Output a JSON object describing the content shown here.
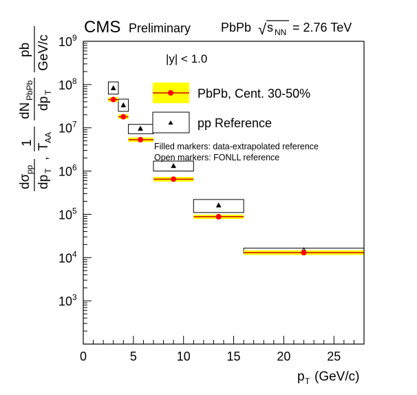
{
  "header": {
    "experiment": "CMS",
    "status": "Preliminary",
    "system": "PbPb",
    "sqrt_symbol": "√",
    "energy_var": "s",
    "energy_sub": "NN",
    "energy_value": "= 2.76 TeV"
  },
  "rapidity_cut": "|y| < 1.0",
  "notes": {
    "filled": "Filled markers: data-extrapolated reference",
    "open": "Open markers: FONLL reference"
  },
  "colors": {
    "pbpb_band": "#ffff00",
    "pbpb_line": "#cc0000",
    "pbpb_marker": "#ff0000",
    "pp_marker": "#000000"
  },
  "chart_data": {
    "type": "scatter",
    "xlabel": "p_T (GeV/c)",
    "ylabel": "dσ_pp/dp_T , 1/T_AA dN_PbPb/dp_T   pb/(GeV/c)",
    "xlim": [
      0,
      28
    ],
    "ylim": [
      100,
      1000000000
    ],
    "yscale": "log",
    "x_ticks": [
      0,
      5,
      10,
      15,
      20,
      25
    ],
    "y_ticks": [
      {
        "value": 1000,
        "base": "10",
        "exp": "3"
      },
      {
        "value": 10000,
        "base": "10",
        "exp": "4"
      },
      {
        "value": 100000,
        "base": "10",
        "exp": "5"
      },
      {
        "value": 1000000,
        "base": "10",
        "exp": "6"
      },
      {
        "value": 10000000,
        "base": "10",
        "exp": "7"
      },
      {
        "value": 100000000,
        "base": "10",
        "exp": "8"
      },
      {
        "value": 1000000000,
        "base": "10",
        "exp": "9"
      }
    ],
    "legend_position": "top-right",
    "series": [
      {
        "name": "PbPb, Cent. 30-50%",
        "marker": "filled-circle",
        "points": [
          {
            "x": 3.0,
            "y": 45000000,
            "xlo": 2.5,
            "xhi": 3.5,
            "ylo": 40000000,
            "yhi": 51000000
          },
          {
            "x": 4.0,
            "y": 18000000,
            "xlo": 3.5,
            "xhi": 4.5,
            "ylo": 16000000,
            "yhi": 20500000
          },
          {
            "x": 5.7,
            "y": 5300000,
            "xlo": 4.5,
            "xhi": 7.0,
            "ylo": 4700000,
            "yhi": 6000000
          },
          {
            "x": 9.0,
            "y": 650000,
            "xlo": 7.0,
            "xhi": 11.0,
            "ylo": 570000,
            "yhi": 730000
          },
          {
            "x": 13.5,
            "y": 88000,
            "xlo": 11.0,
            "xhi": 16.0,
            "ylo": 78000,
            "yhi": 98000
          },
          {
            "x": 22.0,
            "y": 13000,
            "xlo": 16.0,
            "xhi": 28.0,
            "ylo": 11500,
            "yhi": 14700
          }
        ]
      },
      {
        "name": "pp Reference",
        "marker": "triangle",
        "points": [
          {
            "x": 3.0,
            "y": 82000000,
            "xlo": 2.5,
            "xhi": 3.5,
            "ylo": 60000000,
            "yhi": 115000000,
            "style": "filled"
          },
          {
            "x": 4.0,
            "y": 33000000,
            "xlo": 3.5,
            "xhi": 4.5,
            "ylo": 24000000,
            "yhi": 46000000,
            "style": "filled"
          },
          {
            "x": 5.7,
            "y": 9500000,
            "xlo": 4.5,
            "xhi": 7.0,
            "ylo": 7300000,
            "yhi": 12000000,
            "style": "filled"
          },
          {
            "x": 9.0,
            "y": 1300000,
            "xlo": 7.0,
            "xhi": 11.0,
            "ylo": 1000000,
            "yhi": 1700000,
            "style": "filled"
          },
          {
            "x": 13.5,
            "y": 160000,
            "xlo": 11.0,
            "xhi": 16.0,
            "ylo": 110000,
            "yhi": 220000,
            "style": "filled"
          },
          {
            "x": 22.0,
            "y": 14500,
            "xlo": 16.0,
            "xhi": 28.0,
            "ylo": 12500,
            "yhi": 16500,
            "style": "open"
          }
        ]
      }
    ]
  }
}
